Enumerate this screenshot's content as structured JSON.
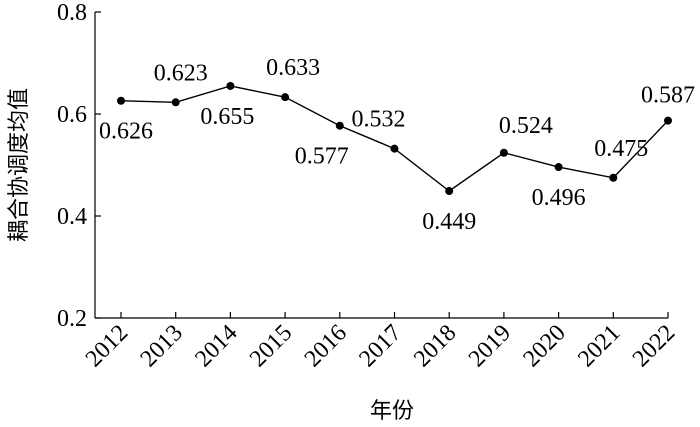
{
  "chart_data": {
    "type": "line",
    "title": "",
    "xlabel": "年份",
    "ylabel": "耦合协调度均值",
    "x": [
      "2012",
      "2013",
      "2014",
      "2015",
      "2016",
      "2017",
      "2018",
      "2019",
      "2020",
      "2021",
      "2022"
    ],
    "series": [
      {
        "values": [
          0.626,
          0.623,
          0.655,
          0.633,
          0.577,
          0.532,
          0.449,
          0.524,
          0.496,
          0.475,
          0.587
        ],
        "data_labels": [
          "0.626",
          "0.623",
          "0.655",
          "0.633",
          "0.577",
          "0.532",
          "0.449",
          "0.524",
          "0.496",
          "0.475",
          "0.587"
        ]
      }
    ],
    "ylim": [
      0.2,
      0.8
    ],
    "yticks": [
      "0.2",
      "0.4",
      "0.6",
      "0.8"
    ],
    "grid": false,
    "color": "#000000"
  }
}
